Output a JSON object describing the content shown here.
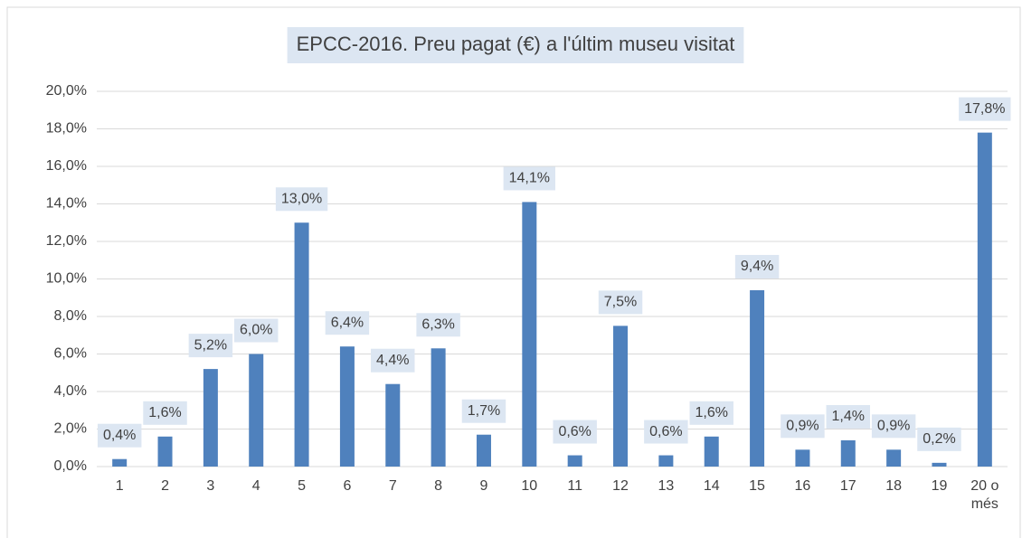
{
  "chart_data": {
    "type": "bar",
    "title": "EPCC-2016. Preu pagat (€) a l'últim museu visitat",
    "categories": [
      "1",
      "2",
      "3",
      "4",
      "5",
      "6",
      "7",
      "8",
      "9",
      "10",
      "11",
      "12",
      "13",
      "14",
      "15",
      "16",
      "17",
      "18",
      "19",
      "20 o més"
    ],
    "values": [
      0.4,
      1.6,
      5.2,
      6.0,
      13.0,
      6.4,
      4.4,
      6.3,
      1.7,
      14.1,
      0.6,
      7.5,
      0.6,
      1.6,
      9.4,
      0.9,
      1.4,
      0.9,
      0.2,
      17.8
    ],
    "value_labels": [
      "0,4%",
      "1,6%",
      "5,2%",
      "6,0%",
      "13,0%",
      "6,4%",
      "4,4%",
      "6,3%",
      "1,7%",
      "14,1%",
      "0,6%",
      "7,5%",
      "0,6%",
      "1,6%",
      "9,4%",
      "0,9%",
      "1,4%",
      "0,9%",
      "0,2%",
      "17,8%"
    ],
    "color": "#4f81bd",
    "ylim": [
      0,
      20
    ],
    "yticks": [
      {
        "value": 0,
        "label": "0,0%"
      },
      {
        "value": 2,
        "label": "2,0%"
      },
      {
        "value": 4,
        "label": "4,0%"
      },
      {
        "value": 6,
        "label": "6,0%"
      },
      {
        "value": 8,
        "label": "8,0%"
      },
      {
        "value": 10,
        "label": "10,0%"
      },
      {
        "value": 12,
        "label": "12,0%"
      },
      {
        "value": 14,
        "label": "14,0%"
      },
      {
        "value": 16,
        "label": "16,0%"
      },
      {
        "value": 18,
        "label": "18,0%"
      },
      {
        "value": 20,
        "label": "20,0%"
      }
    ],
    "grid": true
  }
}
